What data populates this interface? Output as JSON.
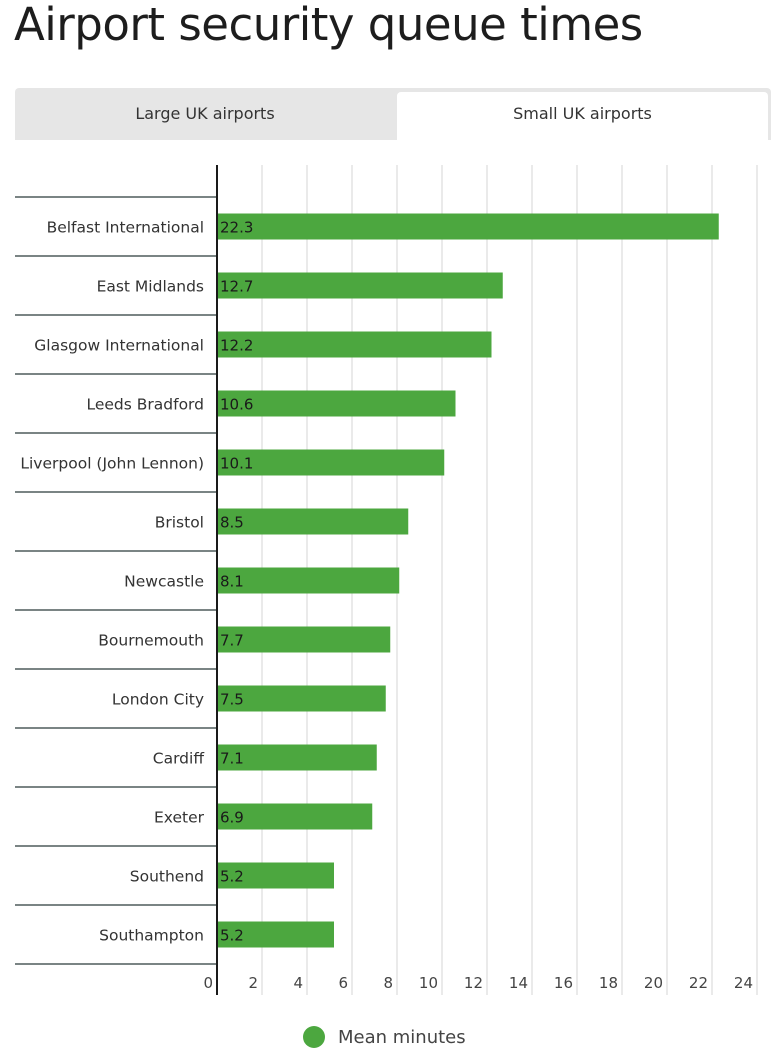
{
  "title": "Airport security queue times",
  "tabs": [
    {
      "label": "Large UK airports",
      "active": false
    },
    {
      "label": "Small UK airports",
      "active": true
    }
  ],
  "colors": {
    "bar": "#4ca73f",
    "axis": "#1a1a1a",
    "grid": "#d4d4d4"
  },
  "legend": {
    "label": "Mean minutes"
  },
  "chart_data": {
    "type": "bar",
    "orientation": "horizontal",
    "title": "Airport security queue times",
    "xlabel": "",
    "ylabel": "",
    "categories": [
      "Belfast International",
      "East Midlands",
      "Glasgow International",
      "Leeds Bradford",
      "Liverpool (John Lennon)",
      "Bristol",
      "Newcastle",
      "Bournemouth",
      "London City",
      "Cardiff",
      "Exeter",
      "Southend",
      "Southampton"
    ],
    "series": [
      {
        "name": "Mean minutes",
        "values": [
          22.3,
          12.7,
          12.2,
          10.6,
          10.1,
          8.5,
          8.1,
          7.7,
          7.5,
          7.1,
          6.9,
          5.2,
          5.2
        ]
      }
    ],
    "xlim": [
      0,
      24
    ],
    "xticks": [
      "0",
      "2",
      "4",
      "6",
      "8",
      "10",
      "12",
      "14",
      "16",
      "18",
      "20",
      "22",
      "24"
    ],
    "grid": true,
    "legend_position": "bottom"
  }
}
